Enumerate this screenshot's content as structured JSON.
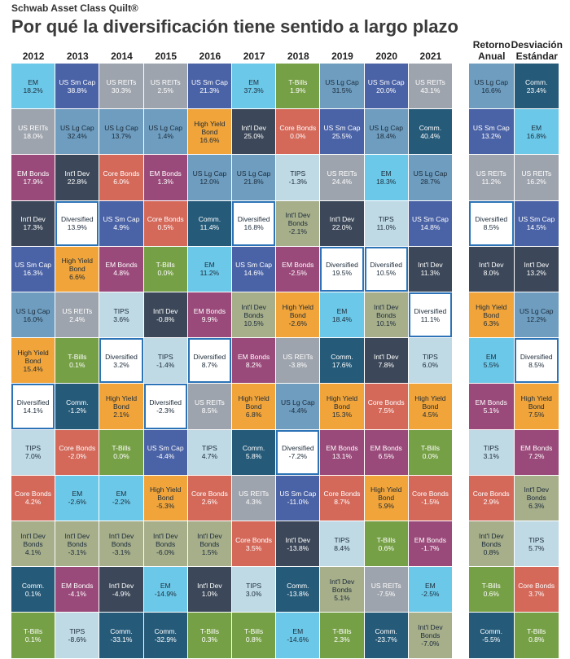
{
  "header": {
    "brand": "Schwab Asset Class Quilt®",
    "title": "Por qué la diversificación tiene sentido a largo plazo"
  },
  "styles": {
    "EM": {
      "fill": "#6cc8e8",
      "text": "#1c2b3a"
    },
    "US Sm Cap": {
      "fill": "#4a62a6",
      "text": "#ffffff"
    },
    "US REITs": {
      "fill": "#9ea4ad",
      "text": "#ffffff"
    },
    "T-Bills": {
      "fill": "#76a046",
      "text": "#ffffff"
    },
    "US Lg Cap": {
      "fill": "#6e9dbf",
      "text": "#1c2b3a"
    },
    "Comm.": {
      "fill": "#255a79",
      "text": "#ffffff"
    },
    "Int'l Dev": {
      "fill": "#3c4859",
      "text": "#ffffff"
    },
    "Core Bonds": {
      "fill": "#d4695a",
      "text": "#ffffff"
    },
    "High Yield Bond": {
      "fill": "#f0a43a",
      "text": "#1c2b3a"
    },
    "EM Bonds": {
      "fill": "#9a4a7a",
      "text": "#ffffff"
    },
    "TIPS": {
      "fill": "#bfd9e5",
      "text": "#1c2b3a"
    },
    "Int'l Dev Bonds": {
      "fill": "#a6ae8a",
      "text": "#1c2b3a"
    },
    "Diversified": {
      "fill": "#ffffff",
      "text": "#1c2b3a"
    }
  },
  "years": [
    {
      "heading": "2012",
      "cells": [
        [
          "EM",
          "18.2%"
        ],
        [
          "US REITs",
          "18.0%"
        ],
        [
          "EM Bonds",
          "17.9%"
        ],
        [
          "Int'l Dev",
          "17.3%"
        ],
        [
          "US Sm Cap",
          "16.3%"
        ],
        [
          "US Lg Cap",
          "16.0%"
        ],
        [
          "High Yield Bond",
          "15.4%"
        ],
        [
          "Diversified",
          "14.1%"
        ],
        [
          "TIPS",
          "7.0%"
        ],
        [
          "Core Bonds",
          "4.2%"
        ],
        [
          "Int'l Dev Bonds",
          "4.1%"
        ],
        [
          "Comm.",
          "0.1%"
        ],
        [
          "T-Bills",
          "0.1%"
        ]
      ]
    },
    {
      "heading": "2013",
      "cells": [
        [
          "US Sm Cap",
          "38.8%"
        ],
        [
          "US Lg Cap",
          "32.4%"
        ],
        [
          "Int'l Dev",
          "22.8%"
        ],
        [
          "Diversified",
          "13.9%"
        ],
        [
          "High Yield Bond",
          "6.6%"
        ],
        [
          "US REITs",
          "2.4%"
        ],
        [
          "T-Bills",
          "0.1%"
        ],
        [
          "Comm.",
          "-1.2%"
        ],
        [
          "Core Bonds",
          "-2.0%"
        ],
        [
          "EM",
          "-2.6%"
        ],
        [
          "Int'l Dev Bonds",
          "-3.1%"
        ],
        [
          "EM Bonds",
          "-4.1%"
        ],
        [
          "TIPS",
          "-8.6%"
        ]
      ]
    },
    {
      "heading": "2014",
      "cells": [
        [
          "US REITs",
          "30.3%"
        ],
        [
          "US Lg Cap",
          "13.7%"
        ],
        [
          "Core Bonds",
          "6.0%"
        ],
        [
          "US Sm Cap",
          "4.9%"
        ],
        [
          "EM Bonds",
          "4.8%"
        ],
        [
          "TIPS",
          "3.6%"
        ],
        [
          "Diversified",
          "3.2%"
        ],
        [
          "High Yield Bond",
          "2.1%"
        ],
        [
          "T-Bills",
          "0.0%"
        ],
        [
          "EM",
          "-2.2%"
        ],
        [
          "Int'l Dev Bonds",
          "-3.1%"
        ],
        [
          "Int'l Dev",
          "-4.9%"
        ],
        [
          "Comm.",
          "-33.1%"
        ]
      ]
    },
    {
      "heading": "2015",
      "cells": [
        [
          "US REITs",
          "2.5%"
        ],
        [
          "US Lg Cap",
          "1.4%"
        ],
        [
          "EM Bonds",
          "1.3%"
        ],
        [
          "Core Bonds",
          "0.5%"
        ],
        [
          "T-Bills",
          "0.0%"
        ],
        [
          "Int'l Dev",
          "-0.8%"
        ],
        [
          "TIPS",
          "-1.4%"
        ],
        [
          "Diversified",
          "-2.3%"
        ],
        [
          "US Sm Cap",
          "-4.4%"
        ],
        [
          "High Yield Bond",
          "-5.3%"
        ],
        [
          "Int'l Dev Bonds",
          "-6.0%"
        ],
        [
          "EM",
          "-14.9%"
        ],
        [
          "Comm.",
          "-32.9%"
        ]
      ]
    },
    {
      "heading": "2016",
      "cells": [
        [
          "US Sm Cap",
          "21.3%"
        ],
        [
          "High Yield Bond",
          "16.6%"
        ],
        [
          "US Lg Cap",
          "12.0%"
        ],
        [
          "Comm.",
          "11.4%"
        ],
        [
          "EM",
          "11.2%"
        ],
        [
          "EM Bonds",
          "9.9%"
        ],
        [
          "Diversified",
          "8.7%"
        ],
        [
          "US REITs",
          "8.5%"
        ],
        [
          "TIPS",
          "4.7%"
        ],
        [
          "Core Bonds",
          "2.6%"
        ],
        [
          "Int'l Dev Bonds",
          "1.5%"
        ],
        [
          "Int'l Dev",
          "1.0%"
        ],
        [
          "T-Bills",
          "0.3%"
        ]
      ]
    },
    {
      "heading": "2017",
      "cells": [
        [
          "EM",
          "37.3%"
        ],
        [
          "Int'l Dev",
          "25.0%"
        ],
        [
          "US Lg Cap",
          "21.8%"
        ],
        [
          "Diversified",
          "16.8%"
        ],
        [
          "US Sm Cap",
          "14.6%"
        ],
        [
          "Int'l Dev Bonds",
          "10.5%"
        ],
        [
          "EM Bonds",
          "8.2%"
        ],
        [
          "High Yield Bond",
          "6.8%"
        ],
        [
          "Comm.",
          "5.8%"
        ],
        [
          "US REITs",
          "4.3%"
        ],
        [
          "Core Bonds",
          "3.5%"
        ],
        [
          "TIPS",
          "3.0%"
        ],
        [
          "T-Bills",
          "0.8%"
        ]
      ]
    },
    {
      "heading": "2018",
      "cells": [
        [
          "T-Bills",
          "1.9%"
        ],
        [
          "Core Bonds",
          "0.0%"
        ],
        [
          "TIPS",
          "-1.3%"
        ],
        [
          "Int'l Dev Bonds",
          "-2.1%"
        ],
        [
          "EM Bonds",
          "-2.5%"
        ],
        [
          "High Yield Bond",
          "-2.6%"
        ],
        [
          "US REITs",
          "-3.8%"
        ],
        [
          "US Lg Cap",
          "-4.4%"
        ],
        [
          "Diversified",
          "-7.2%"
        ],
        [
          "US Sm Cap",
          "-11.0%"
        ],
        [
          "Int'l Dev",
          "-13.8%"
        ],
        [
          "Comm.",
          "-13.8%"
        ],
        [
          "EM",
          "-14.6%"
        ]
      ]
    },
    {
      "heading": "2019",
      "cells": [
        [
          "US Lg Cap",
          "31.5%"
        ],
        [
          "US Sm Cap",
          "25.5%"
        ],
        [
          "US REITs",
          "24.4%"
        ],
        [
          "Int'l Dev",
          "22.0%"
        ],
        [
          "Diversified",
          "19.5%"
        ],
        [
          "EM",
          "18.4%"
        ],
        [
          "Comm.",
          "17.6%"
        ],
        [
          "High Yield Bond",
          "15.3%"
        ],
        [
          "EM Bonds",
          "13.1%"
        ],
        [
          "Core Bonds",
          "8.7%"
        ],
        [
          "TIPS",
          "8.4%"
        ],
        [
          "Int'l Dev Bonds",
          "5.1%"
        ],
        [
          "T-Bills",
          "2.3%"
        ]
      ]
    },
    {
      "heading": "2020",
      "cells": [
        [
          "US Sm Cap",
          "20.0%"
        ],
        [
          "US Lg Cap",
          "18.4%"
        ],
        [
          "EM",
          "18.3%"
        ],
        [
          "TIPS",
          "11.0%"
        ],
        [
          "Diversified",
          "10.5%"
        ],
        [
          "Int'l Dev Bonds",
          "10.1%"
        ],
        [
          "Int'l Dev",
          "7.8%"
        ],
        [
          "Core Bonds",
          "7.5%"
        ],
        [
          "EM Bonds",
          "6.5%"
        ],
        [
          "High Yield Bond",
          "5.9%"
        ],
        [
          "T-Bills",
          "0.6%"
        ],
        [
          "US REITs",
          "-7.5%"
        ],
        [
          "Comm.",
          "-23.7%"
        ]
      ]
    },
    {
      "heading": "2021",
      "cells": [
        [
          "US REITs",
          "43.1%"
        ],
        [
          "Comm.",
          "40.4%"
        ],
        [
          "US Lg Cap",
          "28.7%"
        ],
        [
          "US Sm Cap",
          "14.8%"
        ],
        [
          "Int'l Dev",
          "11.3%"
        ],
        [
          "Diversified",
          "11.1%"
        ],
        [
          "TIPS",
          "6.0%"
        ],
        [
          "High Yield Bond",
          "4.5%"
        ],
        [
          "T-Bills",
          "0.0%"
        ],
        [
          "Core Bonds",
          "-1.5%"
        ],
        [
          "EM Bonds",
          "-1.7%"
        ],
        [
          "EM",
          "-2.5%"
        ],
        [
          "Int'l Dev Bonds",
          "-7.0%"
        ]
      ]
    }
  ],
  "stats": [
    {
      "heading": "Retorno Anual",
      "cells": [
        [
          "US Lg Cap",
          "16.6%"
        ],
        [
          "US Sm Cap",
          "13.2%"
        ],
        [
          "US REITs",
          "11.2%"
        ],
        [
          "Diversified",
          "8.5%"
        ],
        [
          "Int'l Dev",
          "8.0%"
        ],
        [
          "High Yield Bond",
          "6.3%"
        ],
        [
          "EM",
          "5.5%"
        ],
        [
          "EM Bonds",
          "5.1%"
        ],
        [
          "TIPS",
          "3.1%"
        ],
        [
          "Core Bonds",
          "2.9%"
        ],
        [
          "Int'l Dev Bonds",
          "0.8%"
        ],
        [
          "T-Bills",
          "0.6%"
        ],
        [
          "Comm.",
          "-5.5%"
        ]
      ]
    },
    {
      "heading": "Desviación Estándar",
      "cells": [
        [
          "Comm.",
          "23.4%"
        ],
        [
          "EM",
          "16.8%"
        ],
        [
          "US REITs",
          "16.2%"
        ],
        [
          "US Sm Cap",
          "14.5%"
        ],
        [
          "Int'l Dev",
          "13.2%"
        ],
        [
          "US Lg Cap",
          "12.2%"
        ],
        [
          "Diversified",
          "8.5%"
        ],
        [
          "High Yield Bond",
          "7.5%"
        ],
        [
          "EM Bonds",
          "7.2%"
        ],
        [
          "Int'l Dev Bonds",
          "6.3%"
        ],
        [
          "TIPS",
          "5.7%"
        ],
        [
          "Core Bonds",
          "3.7%"
        ],
        [
          "T-Bills",
          "0.8%"
        ]
      ]
    }
  ]
}
